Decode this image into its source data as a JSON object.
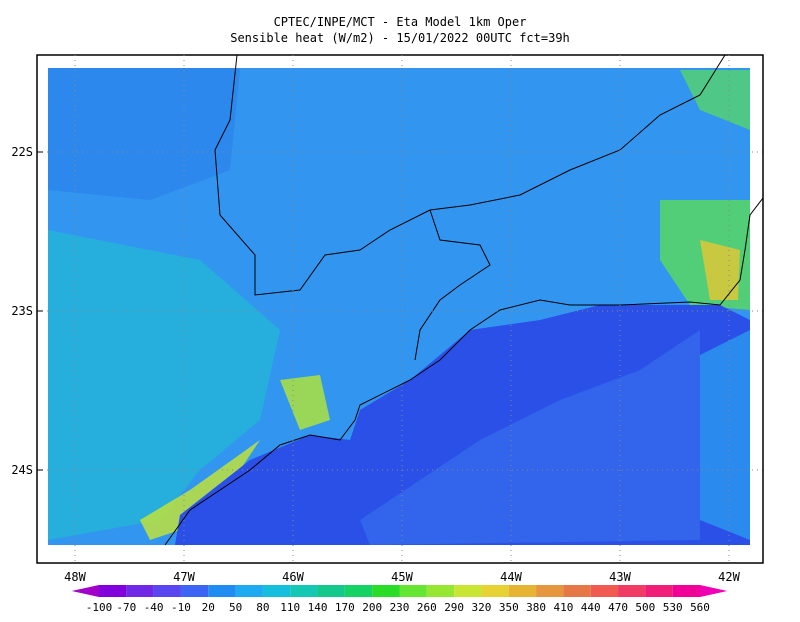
{
  "header": {
    "title": "CPTEC/INPE/MCT -  Eta Model 1km Oper",
    "subtitle": "Sensible heat (W/m2) - 15/01/2022 00UTC fct=39h"
  },
  "lat_labels": [
    "22S",
    "23S",
    "24S"
  ],
  "lon_labels": [
    "48W",
    "47W",
    "46W",
    "45W",
    "44W",
    "43W",
    "42W"
  ],
  "colorbar": {
    "labels": [
      "-100",
      "-70",
      "-40",
      "-10",
      "20",
      "50",
      "80",
      "110",
      "140",
      "170",
      "200",
      "230",
      "260",
      "290",
      "320",
      "350",
      "380",
      "410",
      "440",
      "470",
      "500",
      "530",
      "560"
    ],
    "colors": [
      "#a000c8",
      "#8200dc",
      "#6e28e6",
      "#5a46f0",
      "#3c64f5",
      "#1e8cf0",
      "#1eaaf0",
      "#14bedc",
      "#14c8b4",
      "#14c88c",
      "#14d264",
      "#28dc28",
      "#64e632",
      "#96e632",
      "#c8e632",
      "#e6d232",
      "#e6b432",
      "#e6963c",
      "#e67846",
      "#f05a50",
      "#f03c64",
      "#f01e78",
      "#f00096",
      "#f000b4"
    ]
  }
}
